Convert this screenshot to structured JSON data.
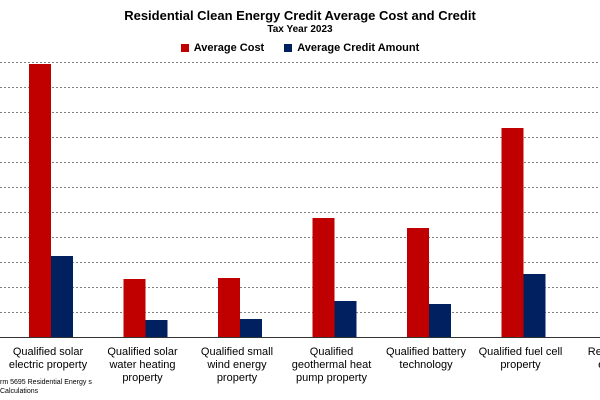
{
  "chart_data": {
    "type": "bar",
    "title": "Residential Clean Energy Credit Average Cost and Credit",
    "subtitle": "Tax Year 2023",
    "legend_position": "top",
    "grid": true,
    "ylim": [
      0,
      27500
    ],
    "grid_step": 2500,
    "categories": [
      [
        "Qualified solar",
        "electric property"
      ],
      [
        "Qualified solar",
        "water heating",
        "property"
      ],
      [
        "Qualified small",
        "wind energy",
        "property"
      ],
      [
        "Qualified",
        "geothermal heat",
        "pump property"
      ],
      [
        "Qualified battery",
        "technology"
      ],
      [
        "Qualified fuel cell",
        "property"
      ],
      [
        "Residential",
        "energy"
      ]
    ],
    "series": [
      {
        "name": "Average Cost",
        "color": "#c00000",
        "values": [
          27300,
          5800,
          5900,
          11900,
          10900,
          20900,
          null
        ]
      },
      {
        "name": "Average Credit Amount",
        "color": "#002060",
        "values": [
          8100,
          1700,
          1800,
          3600,
          3300,
          6300,
          null
        ]
      }
    ]
  },
  "source_note": "rm 5695 Residential Energy s Calculations"
}
